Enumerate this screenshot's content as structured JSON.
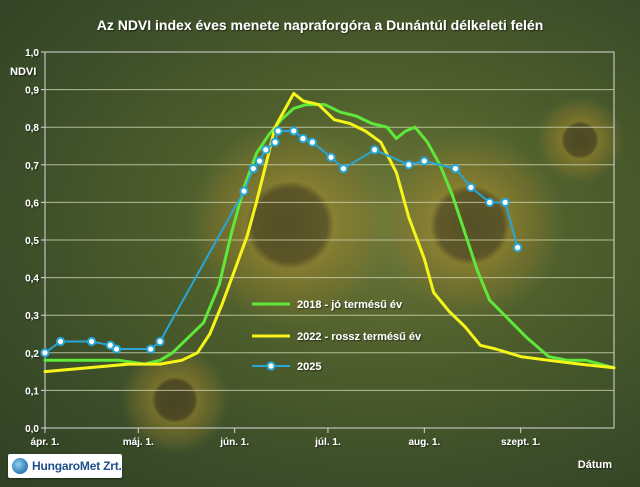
{
  "logo": {
    "name": "HungaroMet Zrt."
  },
  "colors": {
    "background": "#4a5a2c",
    "grid": "#c9cfa9",
    "axis": "#d9d9d9",
    "series_2018": "#5ee83a",
    "series_2022": "#f5f51a",
    "series_2025": "#29a6d6"
  },
  "chart_data": {
    "type": "line",
    "title": "Az NDVI index éves menete napraforgóra a Dunántúl délkeleti felén",
    "xlabel": "Dátum",
    "ylabel": "NDVI",
    "ylim": [
      0,
      1
    ],
    "yticks": [
      "0,0",
      "0,1",
      "0,2",
      "0,3",
      "0,4",
      "0,5",
      "0,6",
      "0,7",
      "0,8",
      "0,9",
      "1,0"
    ],
    "xlim": [
      "04-01",
      "10-01"
    ],
    "xticks": [
      {
        "date": "04-01",
        "label": "ápr. 1."
      },
      {
        "date": "05-01",
        "label": "máj. 1."
      },
      {
        "date": "06-01",
        "label": "jún. 1."
      },
      {
        "date": "07-01",
        "label": "júl. 1."
      },
      {
        "date": "08-01",
        "label": "aug. 1."
      },
      {
        "date": "09-01",
        "label": "szept. 1."
      }
    ],
    "grid": true,
    "legend": "center-right",
    "series": [
      {
        "name": "2018 - jó termésű év",
        "color": "#5ee83a",
        "marker": false,
        "points": [
          [
            "04-01",
            0.18
          ],
          [
            "04-15",
            0.18
          ],
          [
            "04-25",
            0.18
          ],
          [
            "05-03",
            0.17
          ],
          [
            "05-08",
            0.18
          ],
          [
            "05-12",
            0.2
          ],
          [
            "05-17",
            0.24
          ],
          [
            "05-22",
            0.28
          ],
          [
            "05-27",
            0.38
          ],
          [
            "05-31",
            0.52
          ],
          [
            "06-04",
            0.64
          ],
          [
            "06-08",
            0.73
          ],
          [
            "06-12",
            0.78
          ],
          [
            "06-16",
            0.82
          ],
          [
            "06-20",
            0.85
          ],
          [
            "06-24",
            0.86
          ],
          [
            "06-30",
            0.86
          ],
          [
            "07-05",
            0.84
          ],
          [
            "07-10",
            0.83
          ],
          [
            "07-15",
            0.81
          ],
          [
            "07-20",
            0.8
          ],
          [
            "07-23",
            0.77
          ],
          [
            "07-26",
            0.79
          ],
          [
            "07-29",
            0.8
          ],
          [
            "08-02",
            0.76
          ],
          [
            "08-06",
            0.7
          ],
          [
            "08-10",
            0.62
          ],
          [
            "08-14",
            0.52
          ],
          [
            "08-18",
            0.42
          ],
          [
            "08-22",
            0.34
          ],
          [
            "08-28",
            0.29
          ],
          [
            "09-03",
            0.24
          ],
          [
            "09-10",
            0.19
          ],
          [
            "09-16",
            0.18
          ],
          [
            "09-22",
            0.18
          ],
          [
            "10-01",
            0.16
          ]
        ]
      },
      {
        "name": "2022 - rossz termésű év",
        "color": "#f5f51a",
        "marker": false,
        "points": [
          [
            "04-01",
            0.15
          ],
          [
            "04-15",
            0.16
          ],
          [
            "04-28",
            0.17
          ],
          [
            "05-08",
            0.17
          ],
          [
            "05-15",
            0.18
          ],
          [
            "05-20",
            0.2
          ],
          [
            "05-24",
            0.25
          ],
          [
            "05-28",
            0.33
          ],
          [
            "06-01",
            0.42
          ],
          [
            "06-05",
            0.51
          ],
          [
            "06-08",
            0.6
          ],
          [
            "06-11",
            0.7
          ],
          [
            "06-14",
            0.8
          ],
          [
            "06-18",
            0.86
          ],
          [
            "06-20",
            0.89
          ],
          [
            "06-23",
            0.87
          ],
          [
            "06-28",
            0.86
          ],
          [
            "07-03",
            0.82
          ],
          [
            "07-08",
            0.81
          ],
          [
            "07-13",
            0.79
          ],
          [
            "07-18",
            0.76
          ],
          [
            "07-23",
            0.68
          ],
          [
            "07-27",
            0.56
          ],
          [
            "08-01",
            0.45
          ],
          [
            "08-04",
            0.36
          ],
          [
            "08-09",
            0.31
          ],
          [
            "08-14",
            0.27
          ],
          [
            "08-19",
            0.22
          ],
          [
            "08-24",
            0.21
          ],
          [
            "09-01",
            0.19
          ],
          [
            "09-10",
            0.18
          ],
          [
            "09-20",
            0.17
          ],
          [
            "10-01",
            0.16
          ]
        ]
      },
      {
        "name": "2025",
        "color": "#29a6d6",
        "marker": true,
        "points": [
          [
            "04-01",
            0.2
          ],
          [
            "04-06",
            0.23
          ],
          [
            "04-16",
            0.23
          ],
          [
            "04-22",
            0.22
          ],
          [
            "04-24",
            0.21
          ],
          [
            "05-05",
            0.21
          ],
          [
            "05-08",
            0.23
          ],
          [
            "06-04",
            0.63
          ],
          [
            "06-07",
            0.69
          ],
          [
            "06-09",
            0.71
          ],
          [
            "06-11",
            0.74
          ],
          [
            "06-14",
            0.76
          ],
          [
            "06-15",
            0.79
          ],
          [
            "06-20",
            0.79
          ],
          [
            "06-23",
            0.77
          ],
          [
            "06-26",
            0.76
          ],
          [
            "07-02",
            0.72
          ],
          [
            "07-06",
            0.69
          ],
          [
            "07-16",
            0.74
          ],
          [
            "07-27",
            0.7
          ],
          [
            "08-01",
            0.71
          ],
          [
            "08-11",
            0.69
          ],
          [
            "08-16",
            0.64
          ],
          [
            "08-22",
            0.6
          ],
          [
            "08-27",
            0.6
          ],
          [
            "08-31",
            0.48
          ]
        ]
      }
    ]
  }
}
